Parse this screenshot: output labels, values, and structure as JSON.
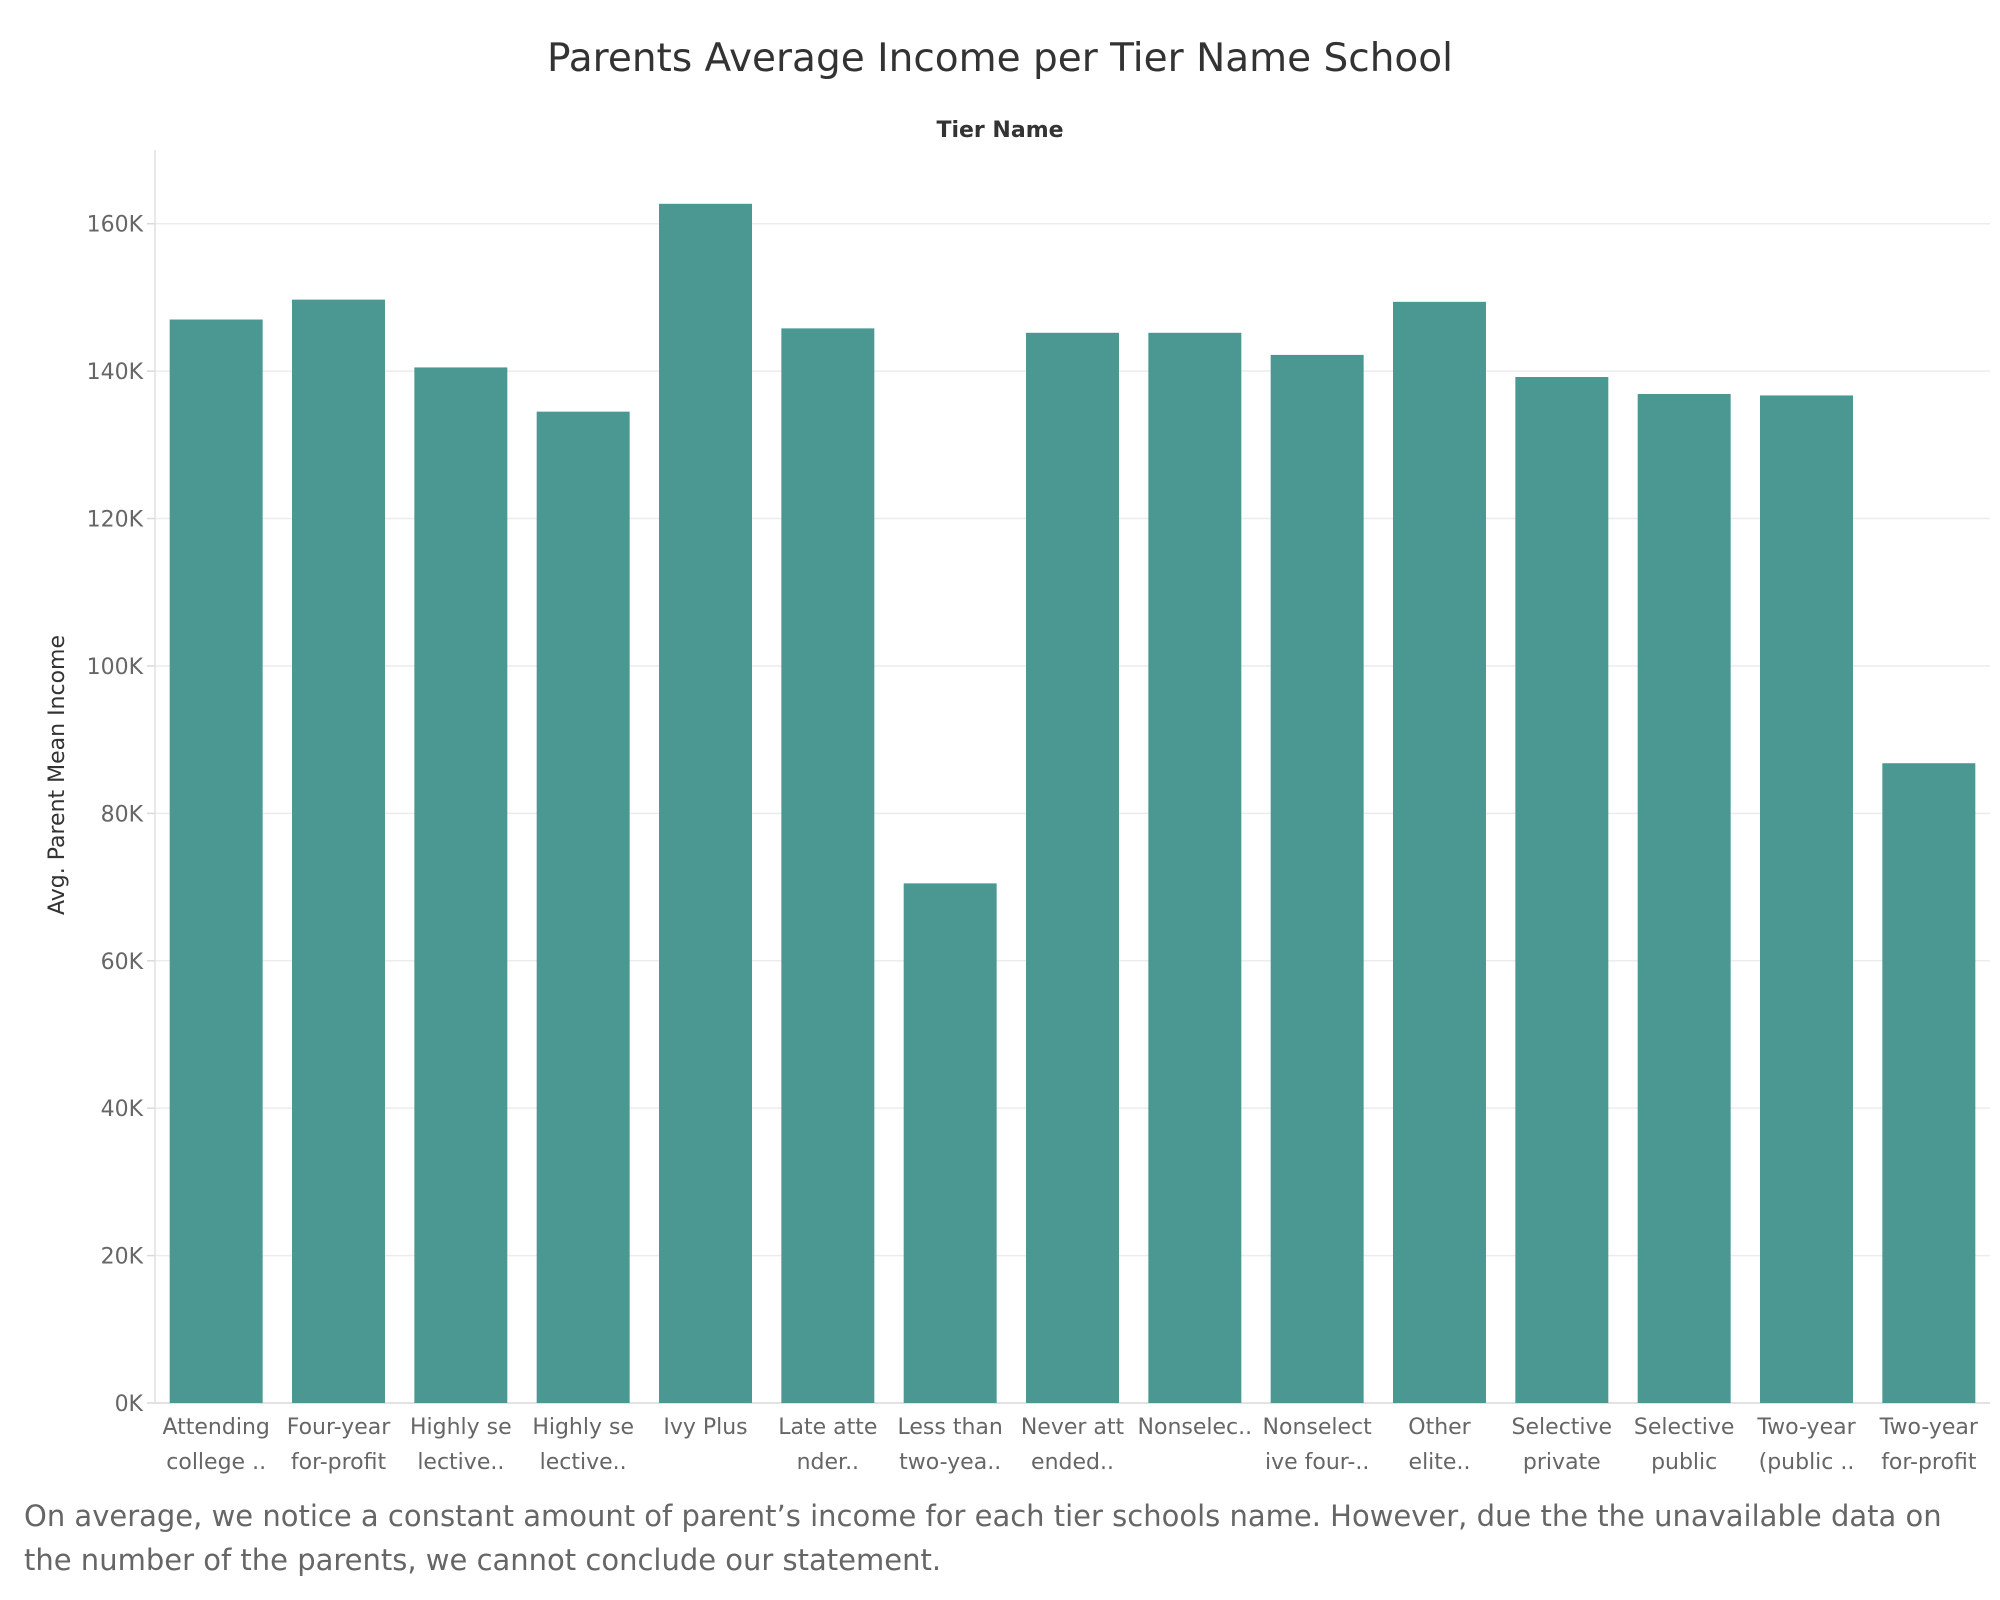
{
  "chart_data": {
    "type": "bar",
    "title": "Parents Average Income per Tier Name School",
    "column_header": "Tier Name",
    "xlabel": "",
    "ylabel": "Avg. Parent Mean Income",
    "ylim": [
      0,
      170000
    ],
    "yticks": [
      0,
      20000,
      40000,
      60000,
      80000,
      100000,
      120000,
      140000,
      160000
    ],
    "ytick_labels": [
      "0K",
      "20K",
      "40K",
      "60K",
      "80K",
      "100K",
      "120K",
      "140K",
      "160K"
    ],
    "grid": true,
    "categories": [
      [
        "Attending",
        "college .."
      ],
      [
        "Four-year",
        "for-profit"
      ],
      [
        "Highly se",
        "lective.."
      ],
      [
        "Highly se",
        "lective.."
      ],
      [
        "Ivy Plus"
      ],
      [
        "Late atte",
        "nder.."
      ],
      [
        "Less than",
        "two-yea.."
      ],
      [
        "Never att",
        "ended.."
      ],
      [
        "Nonselec.."
      ],
      [
        "Nonselect",
        "ive four-.."
      ],
      [
        "Other",
        "elite.."
      ],
      [
        "Selective",
        "private"
      ],
      [
        "Selective",
        "public"
      ],
      [
        "Two-year",
        "(public .."
      ],
      [
        "Two-year",
        "for-profit"
      ]
    ],
    "values": [
      147000,
      149700,
      140500,
      134500,
      162700,
      145800,
      70500,
      145200,
      145200,
      142200,
      149400,
      139200,
      136900,
      136700,
      86800
    ],
    "bar_color": "#4a9891"
  },
  "note": "On average, we notice a constant amount of parent’s income for each tier schools name. However, due the the unavailable data on the number of the parents, we cannot conclude our statement."
}
